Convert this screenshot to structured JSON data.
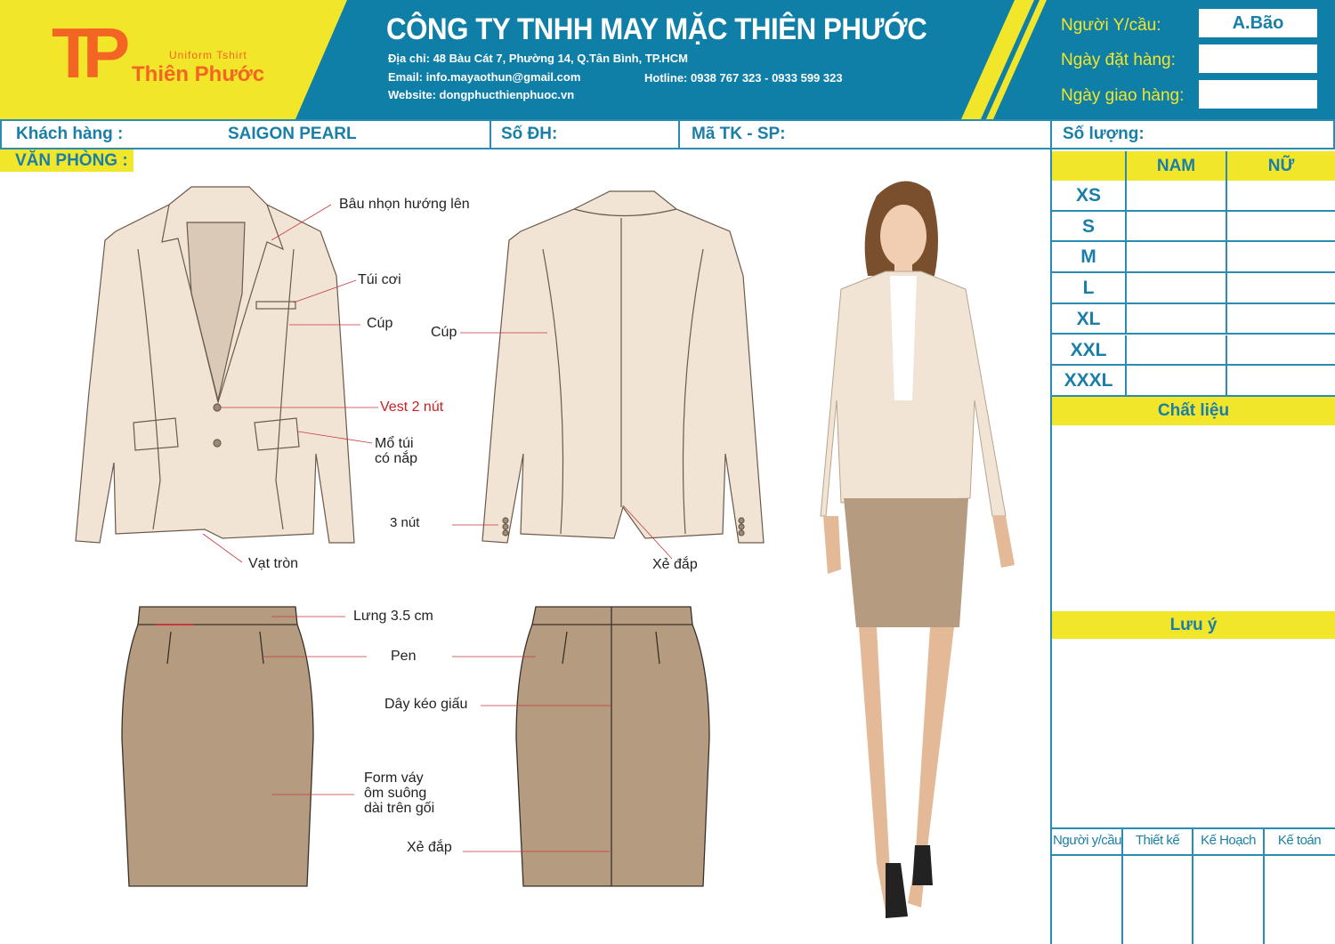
{
  "header": {
    "logo": {
      "letters": "TP",
      "tagline": "Uniform Tshirt",
      "brand": "Thiên Phước"
    },
    "company": "CÔNG TY TNHH MAY MẶC THIÊN PHƯỚC",
    "address": "Địa chỉ: 48 Bàu Cát 7, Phường 14, Q.Tân Bình, TP.HCM",
    "email": "Email: info.mayaothun@gmail.com",
    "hotline": "Hotline: 0938 767 323 - 0933 599 323",
    "website": "Website: dongphucthienphuoc.vn",
    "requester_label": "Người Y/cầu:",
    "requester_value": "A.Bão",
    "order_date_label": "Ngày đặt hàng:",
    "order_date_value": "",
    "delivery_date_label": "Ngày giao hàng:",
    "delivery_date_value": ""
  },
  "order": {
    "customer_label": "Khách hàng :",
    "customer_value": "SAIGON PEARL",
    "order_no_label": "Số ĐH:",
    "design_code_label": "Mã TK - SP:",
    "quantity_label": "Số lượng:",
    "category": "VĂN PHÒNG :"
  },
  "sizes": {
    "columns": [
      "NAM",
      "NỮ"
    ],
    "rows": [
      "XS",
      "S",
      "M",
      "L",
      "XL",
      "XXL",
      "XXXL"
    ]
  },
  "material_label": "Chất liệu",
  "notes_label": "Lưu ý",
  "signatures": [
    "Người y/cầu",
    "Thiết kế",
    "Kế Hoạch",
    "Kế toán"
  ],
  "annotations": {
    "collar": "Bâu nhọn hướng lên",
    "pocket": "Túi cơi",
    "seam_front": "Cúp",
    "seam_back": "Cúp",
    "buttons": "Vest 2 nút",
    "flap_pocket": [
      "Mổ túi",
      "có nắp"
    ],
    "sleeve_buttons": "3 nút",
    "round_hem": "Vạt tròn",
    "back_vent": "Xẻ đắp",
    "waistband": "Lưng 3.5 cm",
    "darts": "Pen",
    "zipper": "Dây kéo giấu",
    "skirt_form": [
      "Form váy",
      "ôm suông",
      "dài trên gối"
    ],
    "skirt_vent": "Xẻ đắp"
  },
  "colors": {
    "brand_blue": "#0f7fa8",
    "brand_yellow": "#f2e62a",
    "logo_orange": "#f26522",
    "jacket": "#f2e4d4",
    "skirt": "#b59c80",
    "annotation_red": "#cc1f1f"
  }
}
